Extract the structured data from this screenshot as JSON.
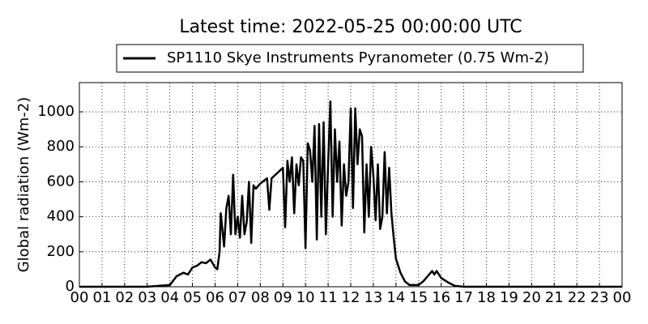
{
  "chart_data": {
    "type": "line",
    "title": "Latest time: 2022-05-25 00:00:00 UTC",
    "ylabel": "Global radiation (Wm-2)",
    "x": [
      0,
      3,
      3.5,
      4,
      4.3,
      4.6,
      4.8,
      5.0,
      5.2,
      5.4,
      5.6,
      5.8,
      6.0,
      6.1,
      6.2,
      6.25,
      6.4,
      6.5,
      6.6,
      6.7,
      6.8,
      6.9,
      7.0,
      7.1,
      7.2,
      7.3,
      7.4,
      7.5,
      7.6,
      7.7,
      7.8,
      8.0,
      8.3,
      8.4,
      8.5,
      9.0,
      9.1,
      9.2,
      9.3,
      9.4,
      9.5,
      9.6,
      9.7,
      9.8,
      9.9,
      10.0,
      10.1,
      10.2,
      10.3,
      10.4,
      10.5,
      10.6,
      10.7,
      10.8,
      10.9,
      11.0,
      11.1,
      11.2,
      11.3,
      11.4,
      11.5,
      11.6,
      11.7,
      11.8,
      11.9,
      12.0,
      12.1,
      12.2,
      12.3,
      12.4,
      12.5,
      12.6,
      12.7,
      12.8,
      12.9,
      13.0,
      13.1,
      13.2,
      13.3,
      13.4,
      13.5,
      13.6,
      13.7,
      13.8,
      13.9,
      14.0,
      14.2,
      14.4,
      14.6,
      15.0,
      15.2,
      15.4,
      15.6,
      15.7,
      15.8,
      16.0,
      16.3,
      16.6,
      17.0,
      24
    ],
    "series": [
      {
        "name": "SP1110 Skye Instruments Pyranometer (0.75 Wm-2)",
        "color": "#000000",
        "values": [
          0,
          0,
          5,
          10,
          60,
          80,
          70,
          110,
          120,
          140,
          135,
          155,
          110,
          100,
          200,
          420,
          230,
          450,
          520,
          300,
          640,
          300,
          400,
          280,
          520,
          300,
          370,
          600,
          250,
          580,
          560,
          590,
          620,
          440,
          620,
          680,
          340,
          720,
          600,
          740,
          420,
          700,
          580,
          740,
          720,
          220,
          820,
          780,
          600,
          920,
          270,
          930,
          400,
          940,
          300,
          700,
          1060,
          400,
          900,
          600,
          830,
          350,
          700,
          520,
          600,
          1020,
          450,
          1020,
          700,
          900,
          860,
          310,
          700,
          400,
          800,
          640,
          380,
          700,
          330,
          400,
          770,
          420,
          680,
          420,
          280,
          160,
          80,
          30,
          10,
          10,
          30,
          60,
          90,
          70,
          90,
          50,
          25,
          5,
          0,
          0
        ]
      }
    ],
    "xlim": [
      0,
      24
    ],
    "xticks": [
      {
        "value": 0,
        "label": "00"
      },
      {
        "value": 1,
        "label": "01"
      },
      {
        "value": 2,
        "label": "02"
      },
      {
        "value": 3,
        "label": "03"
      },
      {
        "value": 4,
        "label": "04"
      },
      {
        "value": 5,
        "label": "05"
      },
      {
        "value": 6,
        "label": "06"
      },
      {
        "value": 7,
        "label": "07"
      },
      {
        "value": 8,
        "label": "08"
      },
      {
        "value": 9,
        "label": "09"
      },
      10,
      11,
      12,
      13,
      14,
      15,
      16,
      17,
      18,
      19,
      20,
      21,
      22,
      23,
      {
        "value": 24,
        "label": "00"
      }
    ],
    "ylim": [
      0,
      1167
    ],
    "yticks": [
      0,
      200,
      400,
      600,
      800,
      1000
    ],
    "grid": true
  }
}
